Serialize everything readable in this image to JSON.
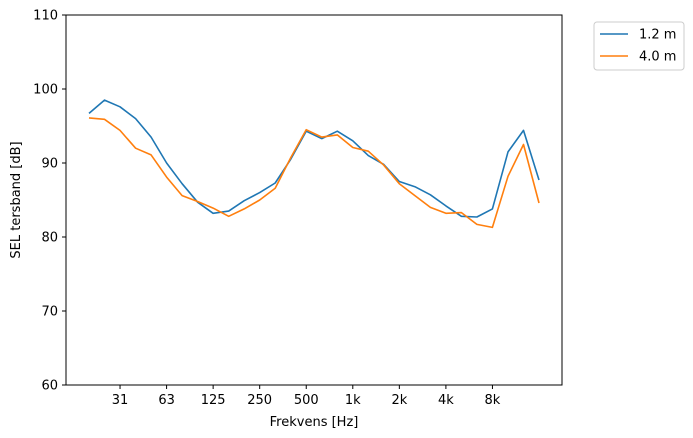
{
  "chart_data": {
    "type": "line",
    "xlabel": "Frekvens [Hz]",
    "ylabel": "SEL tersband [dB]",
    "ylim": [
      60,
      110
    ],
    "yticks": [
      60,
      70,
      80,
      90,
      100,
      110
    ],
    "xtick_labels": [
      "31",
      "63",
      "125",
      "250",
      "500",
      "1k",
      "2k",
      "4k",
      "8k"
    ],
    "x": [
      20,
      25,
      31.5,
      40,
      50,
      63,
      80,
      100,
      125,
      160,
      200,
      250,
      315,
      400,
      500,
      630,
      800,
      1000,
      1250,
      1600,
      2000,
      2500,
      3150,
      4000,
      5000,
      6300,
      8000,
      10000,
      12500,
      16000
    ],
    "legend_position": "outside-top-right",
    "grid": false,
    "series": [
      {
        "name": "1.2 m",
        "color": "#1f77b4",
        "values": [
          96.7,
          98.5,
          97.6,
          96.0,
          93.5,
          90.0,
          87.2,
          84.7,
          83.2,
          83.5,
          84.9,
          86.0,
          87.3,
          90.5,
          94.3,
          93.3,
          94.3,
          93.0,
          91.0,
          89.8,
          87.5,
          86.8,
          85.7,
          84.2,
          82.8,
          82.7,
          83.8,
          91.5,
          94.4,
          87.7
        ]
      },
      {
        "name": "4.0 m",
        "color": "#ff7f0e",
        "values": [
          96.1,
          95.9,
          94.4,
          92.0,
          91.1,
          88.1,
          85.6,
          84.8,
          83.9,
          82.8,
          83.8,
          85.0,
          86.6,
          90.7,
          94.5,
          93.5,
          93.8,
          92.1,
          91.6,
          89.7,
          87.2,
          85.6,
          84.0,
          83.2,
          83.3,
          81.7,
          81.3,
          88.2,
          92.5,
          84.6
        ]
      }
    ]
  }
}
